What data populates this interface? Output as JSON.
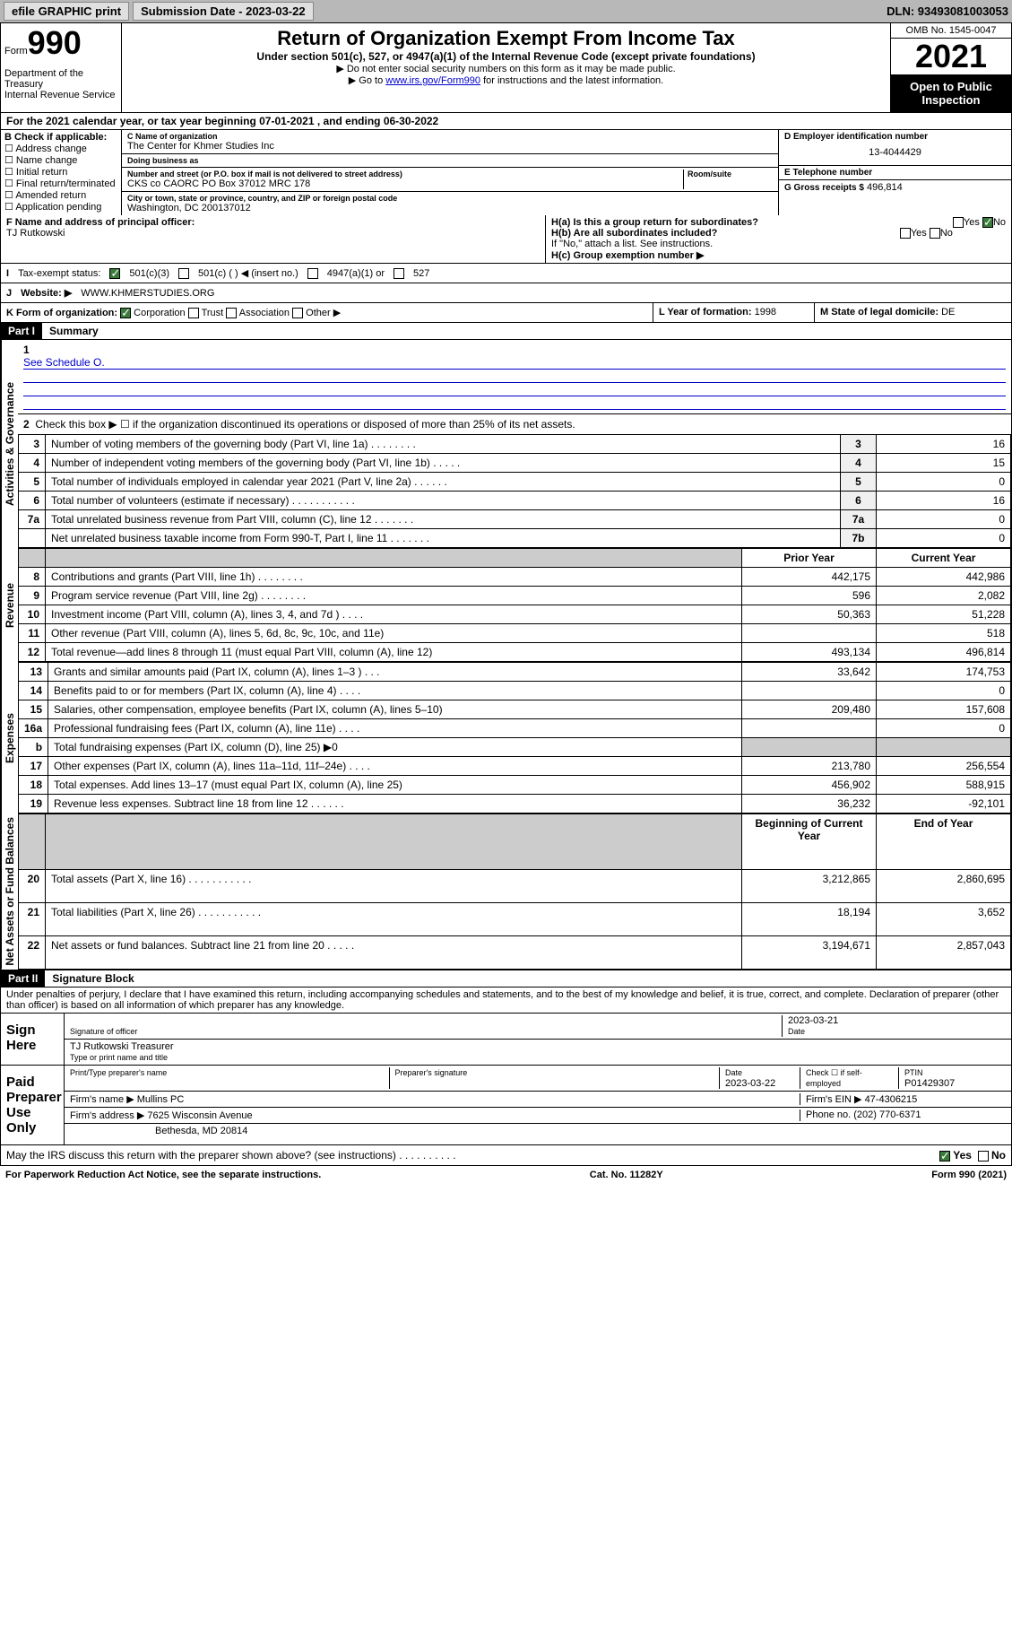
{
  "topbar": {
    "efile": "efile GRAPHIC print",
    "subdate_lbl": "Submission Date - 2023-03-22",
    "dln": "DLN: 93493081003053"
  },
  "header": {
    "form": "990",
    "formword": "Form",
    "dept": "Department of the Treasury\nInternal Revenue Service",
    "title": "Return of Organization Exempt From Income Tax",
    "sub": "Under section 501(c), 527, or 4947(a)(1) of the Internal Revenue Code (except private foundations)",
    "note1": "▶ Do not enter social security numbers on this form as it may be made public.",
    "note2_pre": "▶ Go to ",
    "note2_link": "www.irs.gov/Form990",
    "note2_post": " for instructions and the latest information.",
    "omb": "OMB No. 1545-0047",
    "year": "2021",
    "inspect": "Open to Public Inspection"
  },
  "rowA": "For the 2021 calendar year, or tax year beginning 07-01-2021    , and ending 06-30-2022",
  "boxB": {
    "lbl": "B Check if applicable:",
    "items": [
      "Address change",
      "Name change",
      "Initial return",
      "Final return/terminated",
      "Amended return",
      "Application pending"
    ]
  },
  "boxC": {
    "name_lbl": "C Name of organization",
    "name": "The Center for Khmer Studies Inc",
    "dba_lbl": "Doing business as",
    "dba": "",
    "addr_lbl": "Number and street (or P.O. box if mail is not delivered to street address)",
    "room_lbl": "Room/suite",
    "addr": "CKS co CAORC PO Box 37012 MRC 178",
    "city_lbl": "City or town, state or province, country, and ZIP or foreign postal code",
    "city": "Washington, DC  200137012"
  },
  "boxD": {
    "lbl": "D Employer identification number",
    "val": "13-4044429"
  },
  "boxE": {
    "lbl": "E Telephone number",
    "val": ""
  },
  "boxG": {
    "lbl": "G Gross receipts $",
    "val": "496,814"
  },
  "boxF": {
    "lbl": "F  Name and address of principal officer:",
    "val": "TJ Rutkowski"
  },
  "boxH": {
    "ha": "H(a)  Is this a group return for subordinates?",
    "hb": "H(b)  Are all subordinates included?",
    "hb_note": "If \"No,\" attach a list. See instructions.",
    "hc": "H(c)  Group exemption number ▶",
    "yes": "Yes",
    "no": "No"
  },
  "rowI": {
    "lbl": "Tax-exempt status:",
    "opts": [
      "501(c)(3)",
      "501(c) (  ) ◀ (insert no.)",
      "4947(a)(1) or",
      "527"
    ]
  },
  "rowJ": {
    "lbl": "Website: ▶",
    "val": "WWW.KHMERSTUDIES.ORG"
  },
  "rowK": {
    "lbl": "K Form of organization:",
    "opts": [
      "Corporation",
      "Trust",
      "Association",
      "Other ▶"
    ]
  },
  "rowL": {
    "lbl": "L Year of formation:",
    "val": "1998"
  },
  "rowM": {
    "lbl": "M State of legal domicile:",
    "val": "DE"
  },
  "part1": {
    "bar": "Part I",
    "title": "Summary"
  },
  "summary": {
    "line1": "Briefly describe the organization's mission or most significant activities:",
    "line1v": "See Schedule O.",
    "line2": "Check this box ▶ ☐  if the organization discontinued its operations or disposed of more than 25% of its net assets.",
    "lines_gov": [
      {
        "n": "3",
        "t": "Number of voting members of the governing body (Part VI, line 1a)   .    .    .    .    .    .    .    .",
        "b": "3",
        "v": "16"
      },
      {
        "n": "4",
        "t": "Number of independent voting members of the governing body (Part VI, line 1b)   .    .    .    .    .",
        "b": "4",
        "v": "15"
      },
      {
        "n": "5",
        "t": "Total number of individuals employed in calendar year 2021 (Part V, line 2a)   .    .    .    .    .    .",
        "b": "5",
        "v": "0"
      },
      {
        "n": "6",
        "t": "Total number of volunteers (estimate if necessary)    .    .    .    .    .    .    .    .    .    .    .",
        "b": "6",
        "v": "16"
      },
      {
        "n": "7a",
        "t": "Total unrelated business revenue from Part VIII, column (C), line 12    .    .    .    .    .    .    .",
        "b": "7a",
        "v": "0"
      },
      {
        "n": "",
        "t": "Net unrelated business taxable income from Form 990-T, Part I, line 11    .    .    .    .    .    .    .",
        "b": "7b",
        "v": "0"
      }
    ],
    "hdr_prior": "Prior Year",
    "hdr_curr": "Current Year",
    "lines_rev": [
      {
        "n": "8",
        "t": "Contributions and grants (Part VIII, line 1h)    .    .    .    .    .    .    .    .",
        "p": "442,175",
        "c": "442,986"
      },
      {
        "n": "9",
        "t": "Program service revenue (Part VIII, line 2g)    .    .    .    .    .    .    .    .",
        "p": "596",
        "c": "2,082"
      },
      {
        "n": "10",
        "t": "Investment income (Part VIII, column (A), lines 3, 4, and 7d )    .    .    .    .",
        "p": "50,363",
        "c": "51,228"
      },
      {
        "n": "11",
        "t": "Other revenue (Part VIII, column (A), lines 5, 6d, 8c, 9c, 10c, and 11e)",
        "p": "",
        "c": "518"
      },
      {
        "n": "12",
        "t": "Total revenue—add lines 8 through 11 (must equal Part VIII, column (A), line 12)",
        "p": "493,134",
        "c": "496,814"
      }
    ],
    "lines_exp": [
      {
        "n": "13",
        "t": "Grants and similar amounts paid (Part IX, column (A), lines 1–3 )    .    .    .",
        "p": "33,642",
        "c": "174,753"
      },
      {
        "n": "14",
        "t": "Benefits paid to or for members (Part IX, column (A), line 4)    .    .    .    .",
        "p": "",
        "c": "0"
      },
      {
        "n": "15",
        "t": "Salaries, other compensation, employee benefits (Part IX, column (A), lines 5–10)",
        "p": "209,480",
        "c": "157,608"
      },
      {
        "n": "16a",
        "t": "Professional fundraising fees (Part IX, column (A), line 11e)    .    .    .    .",
        "p": "",
        "c": "0"
      },
      {
        "n": "b",
        "t": "Total fundraising expenses (Part IX, column (D), line 25) ▶0",
        "p": "shade",
        "c": "shade"
      },
      {
        "n": "17",
        "t": "Other expenses (Part IX, column (A), lines 11a–11d, 11f–24e)    .    .    .    .",
        "p": "213,780",
        "c": "256,554"
      },
      {
        "n": "18",
        "t": "Total expenses. Add lines 13–17 (must equal Part IX, column (A), line 25)",
        "p": "456,902",
        "c": "588,915"
      },
      {
        "n": "19",
        "t": "Revenue less expenses. Subtract line 18 from line 12    .    .    .    .    .    .",
        "p": "36,232",
        "c": "-92,101"
      }
    ],
    "hdr_beg": "Beginning of Current Year",
    "hdr_end": "End of Year",
    "lines_na": [
      {
        "n": "20",
        "t": "Total assets (Part X, line 16)    .    .    .    .    .    .    .    .    .    .    .",
        "p": "3,212,865",
        "c": "2,860,695"
      },
      {
        "n": "21",
        "t": "Total liabilities (Part X, line 26)    .    .    .    .    .    .    .    .    .    .    .",
        "p": "18,194",
        "c": "3,652"
      },
      {
        "n": "22",
        "t": "Net assets or fund balances. Subtract line 21 from line 20    .    .    .    .    .",
        "p": "3,194,671",
        "c": "2,857,043"
      }
    ]
  },
  "sidetabs": {
    "gov": "Activities & Governance",
    "rev": "Revenue",
    "exp": "Expenses",
    "na": "Net Assets or Fund Balances"
  },
  "part2": {
    "bar": "Part II",
    "title": "Signature Block"
  },
  "sig": {
    "declare": "Under penalties of perjury, I declare that I have examined this return, including accompanying schedules and statements, and to the best of my knowledge and belief, it is true, correct, and complete. Declaration of preparer (other than officer) is based on all information of which preparer has any knowledge.",
    "sign_here": "Sign Here",
    "sig_officer": "Signature of officer",
    "date": "2023-03-21",
    "date_lbl": "Date",
    "name": "TJ Rutkowski  Treasurer",
    "name_lbl": "Type or print name and title",
    "paid": "Paid Preparer Use Only",
    "prep_name_lbl": "Print/Type preparer's name",
    "prep_sig_lbl": "Preparer's signature",
    "prep_date_lbl": "Date",
    "prep_date": "2023-03-22",
    "check_lbl": "Check ☐ if self-employed",
    "ptin_lbl": "PTIN",
    "ptin": "P01429307",
    "firm_name_lbl": "Firm's name    ▶",
    "firm_name": "Mullins PC",
    "firm_ein_lbl": "Firm's EIN ▶",
    "firm_ein": "47-4306215",
    "firm_addr_lbl": "Firm's address ▶",
    "firm_addr": "7625 Wisconsin Avenue",
    "firm_addr2": "Bethesda, MD  20814",
    "phone_lbl": "Phone no.",
    "phone": "(202) 770-6371"
  },
  "may": "May the IRS discuss this return with the preparer shown above? (see instructions)    .    .    .    .    .    .    .    .    .    .",
  "footer": {
    "left": "For Paperwork Reduction Act Notice, see the separate instructions.",
    "mid": "Cat. No. 11282Y",
    "right": "Form 990 (2021)"
  }
}
